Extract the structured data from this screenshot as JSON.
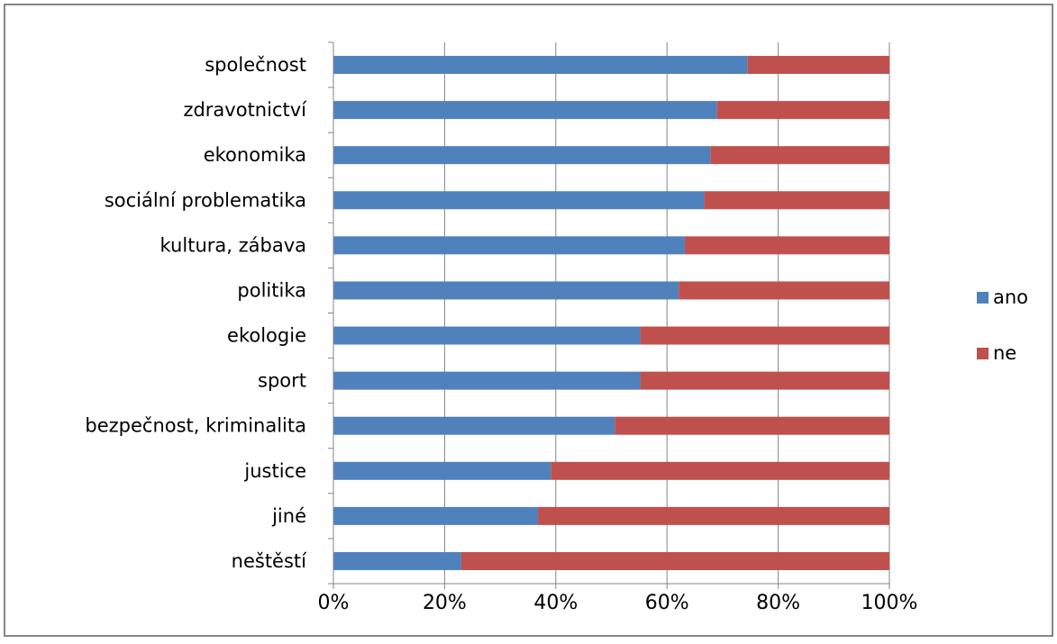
{
  "chart_data": {
    "type": "bar",
    "orientation": "horizontal",
    "stacking": "percent",
    "categories": [
      "společnost",
      "zdravotnictví",
      "ekonomika",
      "sociální problematika",
      "kultura, zábava",
      "politika",
      "ekologie",
      "sport",
      "bezpečnost, kriminalita",
      "justice",
      "jiné",
      "neštěstí"
    ],
    "series": [
      {
        "name": "ano",
        "color": "#4f81bd",
        "values": [
          74.5,
          69,
          67.8,
          66.7,
          63.2,
          62.1,
          55.2,
          55.2,
          50.6,
          39.1,
          36.8,
          23
        ]
      },
      {
        "name": "ne",
        "color": "#c0504d",
        "values": [
          25.5,
          31,
          32.2,
          33.3,
          36.8,
          37.9,
          44.8,
          44.8,
          49.4,
          60.9,
          63.2,
          77
        ]
      }
    ],
    "xlim": [
      0,
      100
    ],
    "x_ticks": [
      "0%",
      "20%",
      "40%",
      "60%",
      "80%",
      "100%"
    ],
    "grid": "vertical",
    "legend": "right",
    "title": "",
    "xlabel": "",
    "ylabel": ""
  }
}
